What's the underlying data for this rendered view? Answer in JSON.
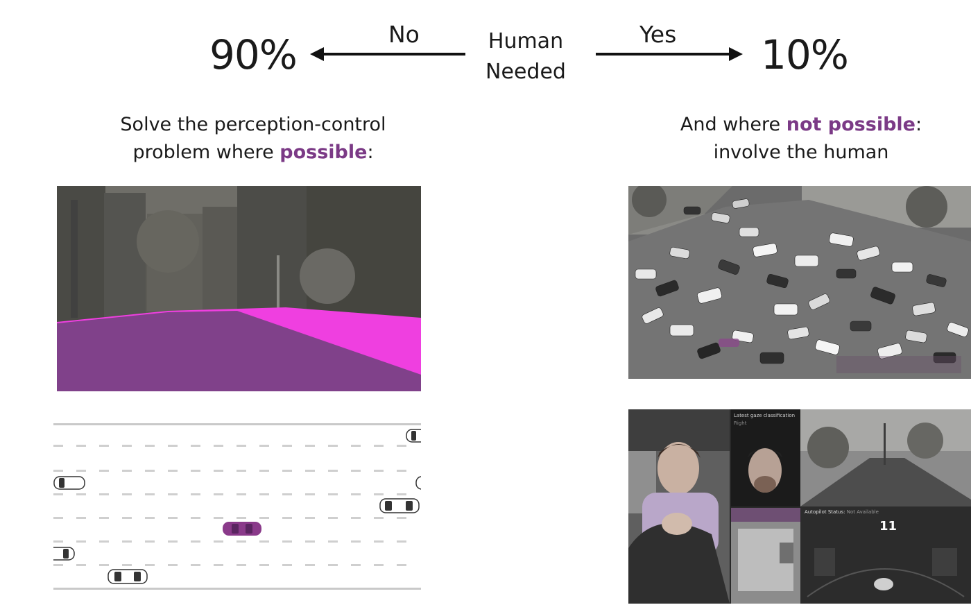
{
  "header": {
    "left_percent": "90%",
    "right_percent": "10%",
    "left_arrow_label": "No",
    "right_arrow_label": "Yes",
    "center_line1": "Human",
    "center_line2": "Needed"
  },
  "left_caption": {
    "line1": "Solve the perception-control",
    "line2_before": "problem where ",
    "line2_accent": "possible",
    "line2_after": ":"
  },
  "right_caption": {
    "line1_before": "And where ",
    "line1_accent": "not possible",
    "line1_after": ":",
    "line2": "involve the human"
  },
  "driver_panel": {
    "gaze_title": "Latest gaze classification",
    "gaze_value": "Right",
    "autopilot_label": "Autopilot Status:",
    "autopilot_value": "Not Available",
    "speed": "11"
  },
  "colors": {
    "accent": "#7b3a86",
    "segmentation_road": "#80418a",
    "segmentation_sidewalk": "#ef3fe0",
    "ego_car": "#8a3a8a"
  }
}
